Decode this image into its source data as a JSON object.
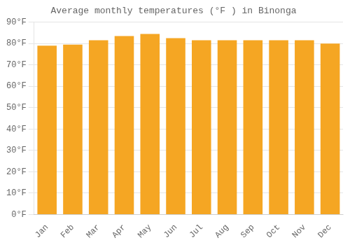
{
  "chart_data": {
    "type": "bar",
    "title": "Average monthly temperatures (°F ) in Binonga",
    "categories": [
      "Jan",
      "Feb",
      "Mar",
      "Apr",
      "May",
      "Jun",
      "Jul",
      "Aug",
      "Sep",
      "Oct",
      "Nov",
      "Dec"
    ],
    "values": [
      79.0,
      79.5,
      81.5,
      83.5,
      84.5,
      82.5,
      81.5,
      81.5,
      81.5,
      81.5,
      81.5,
      80.0
    ],
    "color": "#F5A623",
    "ylim": [
      0,
      90
    ],
    "yticks": [
      {
        "value": 0,
        "label": "0°F"
      },
      {
        "value": 10,
        "label": "10°F"
      },
      {
        "value": 20,
        "label": "20°F"
      },
      {
        "value": 30,
        "label": "30°F"
      },
      {
        "value": 40,
        "label": "40°F"
      },
      {
        "value": 50,
        "label": "50°F"
      },
      {
        "value": 60,
        "label": "60°F"
      },
      {
        "value": 70,
        "label": "70°F"
      },
      {
        "value": 80,
        "label": "80°F"
      },
      {
        "value": 90,
        "label": "90°F"
      }
    ],
    "grid": true
  }
}
